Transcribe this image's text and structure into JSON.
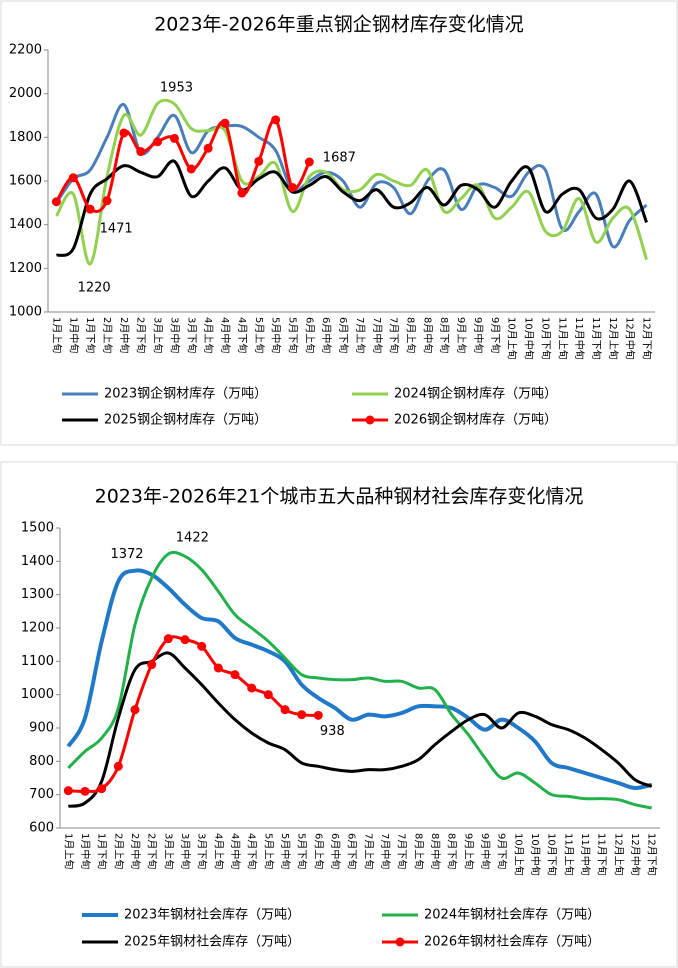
{
  "chart_data": [
    {
      "type": "line",
      "title": "2023年-2026年重点钢企钢材库存变化情况",
      "categories": [
        "1月上旬",
        "1月中旬",
        "1月下旬",
        "2月上旬",
        "2月中旬",
        "2月下旬",
        "3月上旬",
        "3月中旬",
        "3月下旬",
        "4月上旬",
        "4月中旬",
        "4月下旬",
        "5月上旬",
        "5月中旬",
        "5月下旬",
        "6月上旬",
        "6月中旬",
        "6月下旬",
        "7月上旬",
        "7月中旬",
        "7月下旬",
        "8月上旬",
        "8月中旬",
        "8月下旬",
        "9月上旬",
        "9月中旬",
        "9月下旬",
        "10月上旬",
        "10月中旬",
        "10月下旬",
        "11月上旬",
        "11月中旬",
        "11月下旬",
        "12月上旬",
        "12月中旬",
        "12月下旬"
      ],
      "ylim": [
        1000,
        2200
      ],
      "yticks": [
        1000,
        1200,
        1400,
        1600,
        1800,
        2000,
        2200
      ],
      "grid": false,
      "series": [
        {
          "name": "2023钢企钢材库存（万吨）",
          "color": "#4a7ebb",
          "values": [
            1500,
            1610,
            1650,
            1800,
            1950,
            1730,
            1800,
            1900,
            1730,
            1830,
            1850,
            1850,
            1800,
            1740,
            1560,
            1600,
            1640,
            1600,
            1480,
            1590,
            1570,
            1450,
            1600,
            1650,
            1470,
            1580,
            1570,
            1530,
            1640,
            1650,
            1380,
            1460,
            1540,
            1300,
            1420,
            1490
          ]
        },
        {
          "name": "2024钢企钢材库存（万吨）",
          "color": "#92d050",
          "values": [
            1440,
            1540,
            1220,
            1620,
            1900,
            1810,
            1955,
            1953,
            1840,
            1830,
            1830,
            1600,
            1620,
            1680,
            1460,
            1620,
            1640,
            1560,
            1560,
            1630,
            1600,
            1580,
            1650,
            1460,
            1520,
            1580,
            1430,
            1480,
            1550,
            1370,
            1370,
            1520,
            1320,
            1430,
            1470,
            1240
          ],
          "value_labels": [
            null,
            null,
            "1220",
            null,
            null,
            null,
            null,
            "1953",
            null,
            null,
            null,
            null,
            null,
            null,
            null,
            null,
            null,
            null,
            null,
            null,
            null,
            null,
            null,
            null,
            null,
            null,
            null,
            null,
            null,
            null,
            null,
            null,
            null,
            null,
            null,
            null
          ]
        },
        {
          "name": "2025钢企钢材库存（万吨）",
          "color": "#000000",
          "values": [
            1260,
            1290,
            1540,
            1610,
            1670,
            1640,
            1620,
            1690,
            1530,
            1600,
            1660,
            1560,
            1610,
            1640,
            1550,
            1580,
            1620,
            1550,
            1510,
            1560,
            1480,
            1500,
            1570,
            1490,
            1580,
            1560,
            1480,
            1600,
            1660,
            1460,
            1540,
            1560,
            1430,
            1470,
            1600,
            1410
          ]
        },
        {
          "name": "2026钢企钢材库存（万吨）",
          "color": "#ff0000",
          "markers": true,
          "values": [
            1505,
            1615,
            1471,
            1510,
            1820,
            1735,
            1780,
            1795,
            1655,
            1750,
            1865,
            1545,
            1690,
            1880,
            1570,
            1687,
            null,
            null,
            null,
            null,
            null,
            null,
            null,
            null,
            null,
            null,
            null,
            null,
            null,
            null,
            null,
            null,
            null,
            null,
            null,
            null
          ],
          "value_labels": [
            null,
            null,
            "1471",
            null,
            null,
            null,
            null,
            null,
            null,
            null,
            null,
            null,
            null,
            null,
            null,
            "1687",
            null,
            null,
            null,
            null,
            null,
            null,
            null,
            null,
            null,
            null,
            null,
            null,
            null,
            null,
            null,
            null,
            null,
            null,
            null,
            null
          ]
        }
      ]
    },
    {
      "type": "line",
      "title": "2023年-2026年21个城市五大品种钢材社会库存变化情况",
      "categories": [
        "1月上旬",
        "1月中旬",
        "1月下旬",
        "2月上旬",
        "2月中旬",
        "2月下旬",
        "3月上旬",
        "3月中旬",
        "3月下旬",
        "4月上旬",
        "4月中旬",
        "4月下旬",
        "5月上旬",
        "5月中旬",
        "5月下旬",
        "6月上旬",
        "6月中旬",
        "6月下旬",
        "7月上旬",
        "7月中旬",
        "7月下旬",
        "8月上旬",
        "8月中旬",
        "8月下旬",
        "9月上旬",
        "9月中旬",
        "9月下旬",
        "10月上旬",
        "10月中旬",
        "10月下旬",
        "11月上旬",
        "11月中旬",
        "11月下旬",
        "12月上旬",
        "12月中旬",
        "12月下旬"
      ],
      "ylim": [
        600,
        1500
      ],
      "yticks": [
        600,
        700,
        800,
        900,
        1000,
        1100,
        1200,
        1300,
        1400,
        1500
      ],
      "grid": false,
      "series": [
        {
          "name": "2023年钢材社会库存（万吨）",
          "color": "#1f78c8",
          "values": [
            845,
            930,
            1160,
            1340,
            1372,
            1360,
            1320,
            1270,
            1230,
            1220,
            1170,
            1150,
            1130,
            1100,
            1030,
            990,
            960,
            925,
            940,
            935,
            945,
            965,
            965,
            960,
            930,
            895,
            925,
            900,
            860,
            795,
            780,
            765,
            750,
            735,
            720,
            730
          ],
          "value_labels": [
            null,
            null,
            null,
            null,
            "1372",
            null,
            null,
            null,
            null,
            null,
            null,
            null,
            null,
            null,
            null,
            null,
            null,
            null,
            null,
            null,
            null,
            null,
            null,
            null,
            null,
            null,
            null,
            null,
            null,
            null,
            null,
            null,
            null,
            null,
            null,
            null
          ]
        },
        {
          "name": "2024年钢材社会库存（万吨）",
          "color": "#22b04b",
          "values": [
            780,
            830,
            870,
            960,
            1210,
            1350,
            1422,
            1415,
            1375,
            1310,
            1240,
            1200,
            1160,
            1110,
            1060,
            1050,
            1045,
            1045,
            1050,
            1040,
            1040,
            1020,
            1015,
            940,
            880,
            810,
            750,
            765,
            735,
            700,
            695,
            688,
            688,
            685,
            670,
            660
          ],
          "value_labels": [
            null,
            null,
            null,
            null,
            null,
            null,
            "1422",
            null,
            null,
            null,
            null,
            null,
            null,
            null,
            null,
            null,
            null,
            null,
            null,
            null,
            null,
            null,
            null,
            null,
            null,
            null,
            null,
            null,
            null,
            null,
            null,
            null,
            null,
            null,
            null,
            null
          ]
        },
        {
          "name": "2025年钢材社会库存（万吨）",
          "color": "#000000",
          "values": [
            665,
            675,
            740,
            930,
            1075,
            1100,
            1125,
            1080,
            1030,
            975,
            925,
            885,
            855,
            835,
            795,
            785,
            775,
            770,
            775,
            775,
            785,
            805,
            850,
            890,
            925,
            940,
            900,
            945,
            935,
            910,
            895,
            870,
            835,
            795,
            745,
            725
          ]
        },
        {
          "name": "2026年钢材社会库存（万吨）",
          "color": "#ff0000",
          "markers": true,
          "values": [
            712,
            710,
            718,
            785,
            955,
            1090,
            1168,
            1165,
            1145,
            1080,
            1060,
            1020,
            1000,
            955,
            940,
            938,
            null,
            null,
            null,
            null,
            null,
            null,
            null,
            null,
            null,
            null,
            null,
            null,
            null,
            null,
            null,
            null,
            null,
            null,
            null,
            null
          ],
          "value_labels": [
            null,
            null,
            null,
            null,
            null,
            null,
            null,
            null,
            null,
            null,
            null,
            null,
            null,
            null,
            null,
            "938",
            null,
            null,
            null,
            null,
            null,
            null,
            null,
            null,
            null,
            null,
            null,
            null,
            null,
            null,
            null,
            null,
            null,
            null,
            null,
            null
          ]
        }
      ]
    }
  ]
}
